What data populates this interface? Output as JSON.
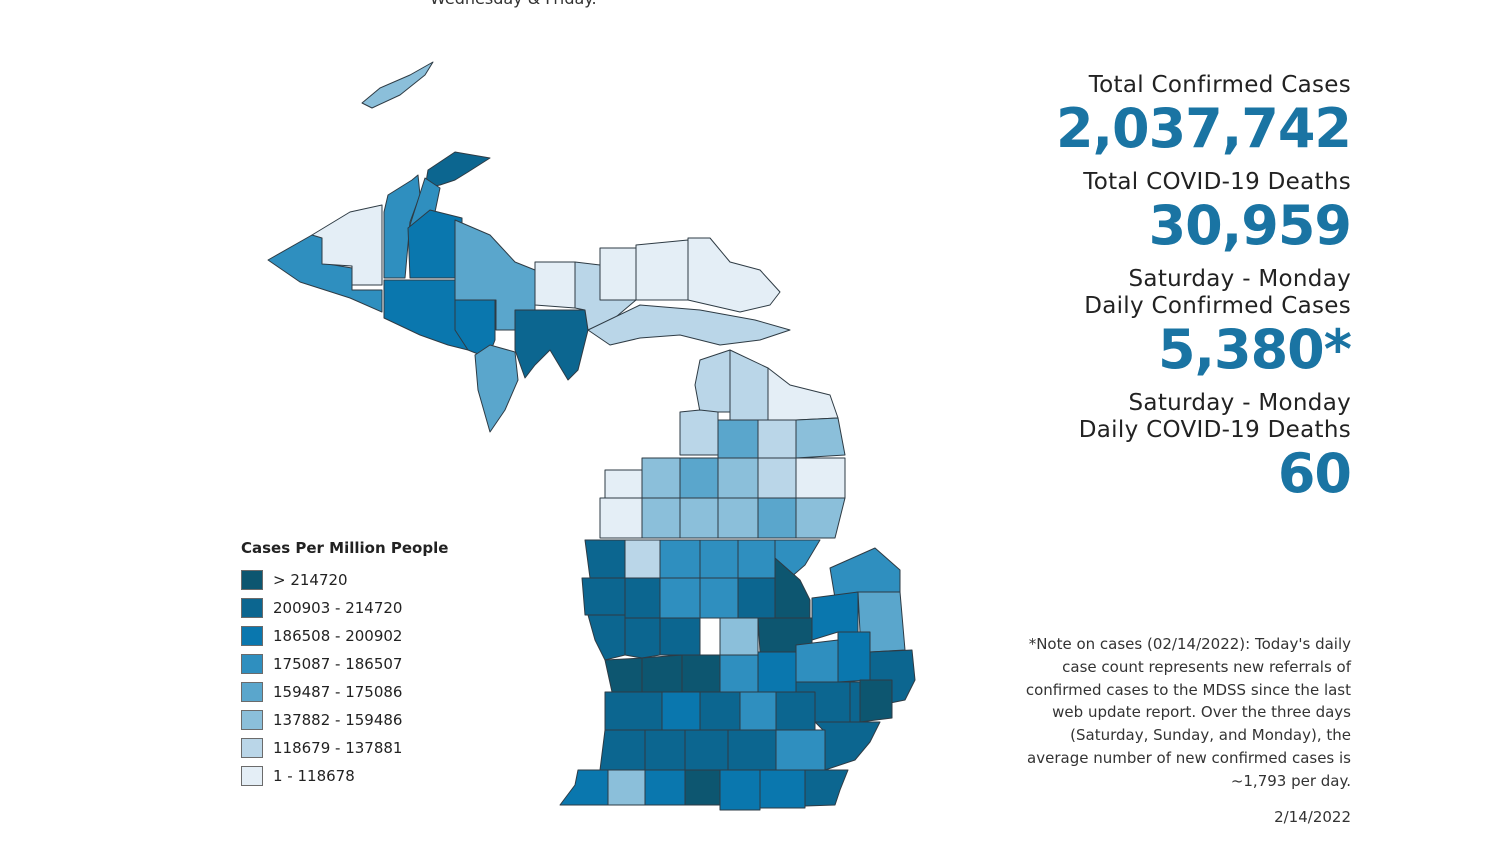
{
  "top_text": "Wednesday & Friday.",
  "legend": {
    "title": "Cases Per Million People",
    "items": [
      {
        "label": "> 214720",
        "color": "#0d5670"
      },
      {
        "label": "200903 - 214720",
        "color": "#0c6690"
      },
      {
        "label": "186508 - 200902",
        "color": "#0a77ae"
      },
      {
        "label": "175087 - 186507",
        "color": "#2f8fbf"
      },
      {
        "label": "159487 - 175086",
        "color": "#5aa6cc"
      },
      {
        "label": "137882 - 159486",
        "color": "#8bbfda"
      },
      {
        "label": "118679 - 137881",
        "color": "#bad6e8"
      },
      {
        "label": "1 - 118678",
        "color": "#e4eef6"
      }
    ]
  },
  "stats": {
    "total_cases_label": "Total Confirmed Cases",
    "total_cases_value": "2,037,742",
    "total_deaths_label": "Total COVID-19 Deaths",
    "total_deaths_value": "30,959",
    "daily_cases_label_line1": "Saturday - Monday",
    "daily_cases_label_line2": "Daily Confirmed Cases",
    "daily_cases_value": "5,380*",
    "daily_deaths_label_line1": "Saturday - Monday",
    "daily_deaths_label_line2": "Daily COVID-19 Deaths",
    "daily_deaths_value": "60"
  },
  "note": "*Note on cases (02/14/2022): Today's daily case count represents new referrals of confirmed cases to the MDSS since the last web update report.  Over the three days (Saturday, Sunday, and Monday), the average number of new confirmed cases is ~1,793 per day.",
  "date": "2/14/2022",
  "colors": {
    "accent": "#1a74a3",
    "county_border": "#2e3b44"
  }
}
